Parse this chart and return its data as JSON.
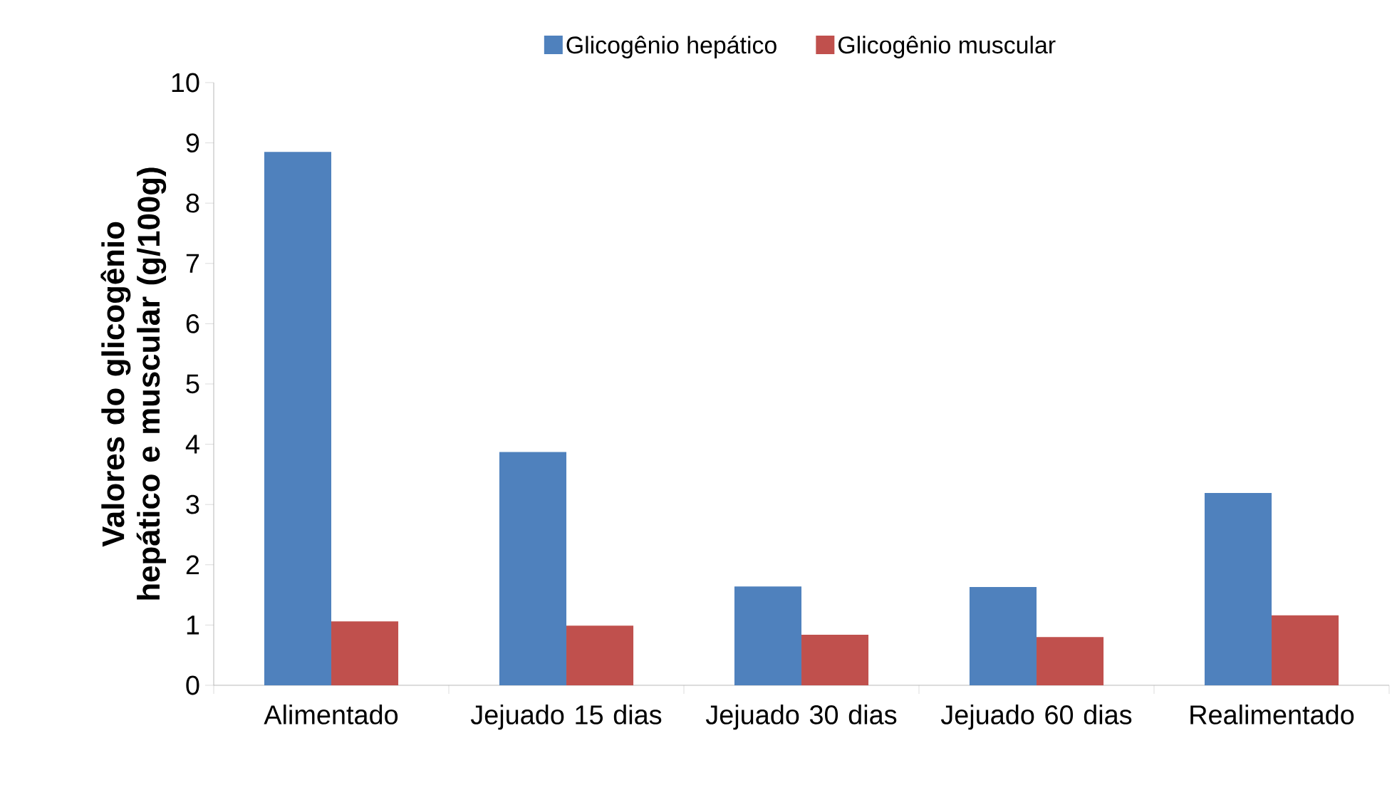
{
  "chart_data": {
    "type": "bar",
    "ylabel": "Valores do glicogênio hepático e muscular (g/100g)",
    "categories": [
      "Alimentado",
      "Jejuado 15 dias",
      "Jejuado 30 dias",
      "Jejuado 60 dias",
      "Realimentado"
    ],
    "series": [
      {
        "name": "Glicogênio hepático",
        "color": "#4f81bd",
        "values": [
          8.85,
          3.87,
          1.64,
          1.63,
          3.19
        ]
      },
      {
        "name": "Glicogênio muscular",
        "color": "#c0504d",
        "values": [
          1.06,
          0.99,
          0.84,
          0.8,
          1.16
        ]
      }
    ],
    "ylim": [
      0,
      10
    ],
    "yticks": [
      0,
      1,
      2,
      3,
      4,
      5,
      6,
      7,
      8,
      9,
      10
    ],
    "legend": "top",
    "grid": false
  }
}
